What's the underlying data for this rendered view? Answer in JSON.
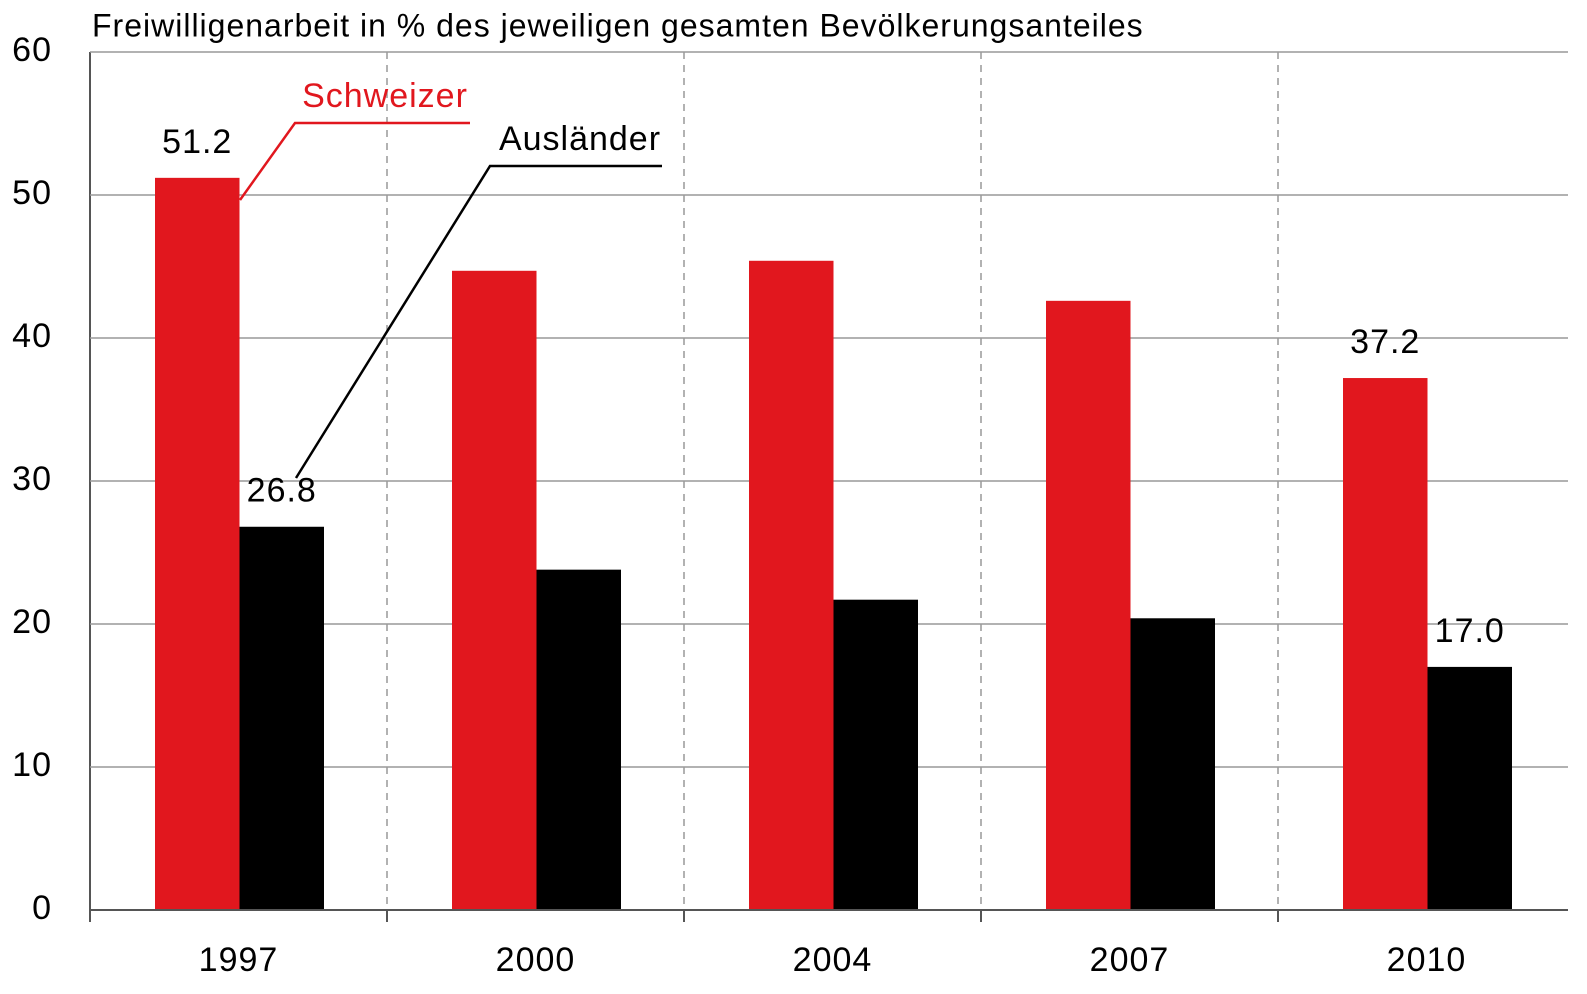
{
  "chart_data": {
    "type": "bar",
    "title": "Freiwilligenarbeit in % des jeweiligen gesamten Bevölkerungsanteiles",
    "categories": [
      "1997",
      "2000",
      "2004",
      "2007",
      "2010"
    ],
    "series": [
      {
        "name": "Schweizer",
        "color": "#e1171e",
        "values": [
          51.2,
          44.7,
          45.4,
          42.6,
          37.2
        ],
        "value_labels": [
          "51.2",
          null,
          null,
          null,
          "37.2"
        ]
      },
      {
        "name": "Ausländer",
        "color": "#000000",
        "values": [
          26.8,
          23.8,
          21.7,
          20.4,
          17.0
        ],
        "value_labels": [
          "26.8",
          null,
          null,
          null,
          "17.0"
        ]
      }
    ],
    "ylim": [
      0,
      60
    ],
    "yticks": [
      0,
      10,
      20,
      30,
      40,
      50,
      60
    ],
    "grid": true
  }
}
